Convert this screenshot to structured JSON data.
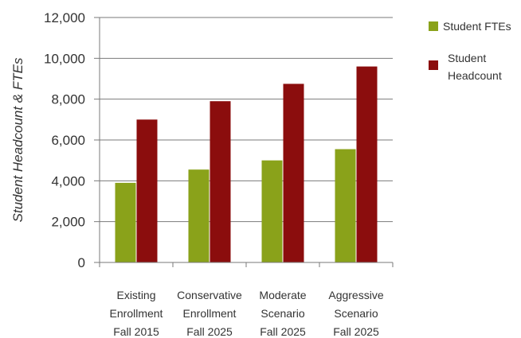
{
  "chart_data": {
    "type": "bar",
    "title": "",
    "xlabel": "",
    "ylabel": "Student Headcount & FTEs",
    "ylim": [
      0,
      12000
    ],
    "yticks": [
      0,
      2000,
      4000,
      6000,
      8000,
      10000,
      12000
    ],
    "ytick_labels": [
      "0",
      "2,000",
      "4,000",
      "6,000",
      "8,000",
      "10,000",
      "12,000"
    ],
    "grid": true,
    "legend_position": "top-right",
    "categories": [
      [
        "Existing",
        "Enrollment",
        "Fall 2015"
      ],
      [
        "Conservative",
        "Enrollment",
        "Fall 2025"
      ],
      [
        "Moderate",
        "Scenario",
        "Fall 2025"
      ],
      [
        "Aggressive",
        "Scenario",
        "Fall 2025"
      ]
    ],
    "series": [
      {
        "name": "Student FTEs",
        "legend_lines": [
          "Student FTEs"
        ],
        "color": "#8aa21a",
        "values": [
          3900,
          4550,
          5000,
          5550
        ]
      },
      {
        "name": "Student Headcount",
        "legend_lines": [
          "Student",
          "Headcount"
        ],
        "color": "#8b0d0d",
        "values": [
          7000,
          7900,
          8750,
          9600
        ]
      }
    ]
  }
}
